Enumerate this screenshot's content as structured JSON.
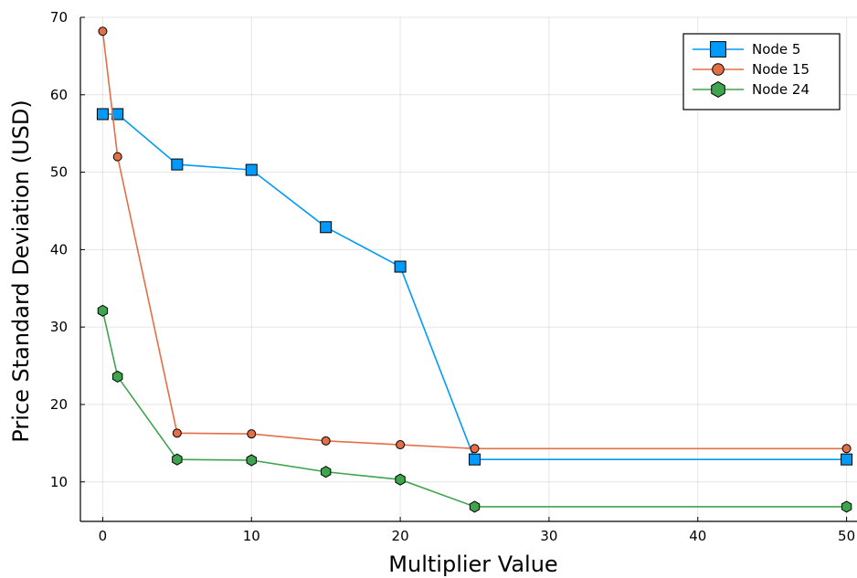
{
  "chart_data": {
    "type": "line",
    "title": "",
    "xlabel": "Multiplier Value",
    "ylabel": "Price Standard Deviation (USD)",
    "xlim": [
      -1.5,
      50.7
    ],
    "ylim": [
      4.9,
      70
    ],
    "xticks": [
      0,
      10,
      20,
      30,
      40,
      50
    ],
    "yticks": [
      10,
      20,
      30,
      40,
      50,
      60,
      70
    ],
    "grid": true,
    "legend_position": "top-right",
    "x": [
      0,
      1,
      5,
      10,
      15,
      20,
      25,
      50
    ],
    "series": [
      {
        "name": "Node 5",
        "color": "#009AFA",
        "marker": "square",
        "values": [
          57.5,
          57.5,
          51.0,
          50.3,
          42.9,
          37.8,
          12.9,
          12.9
        ]
      },
      {
        "name": "Node 15",
        "color": "#E36F47",
        "marker": "circle",
        "values": [
          68.2,
          52.0,
          16.3,
          16.2,
          15.3,
          14.8,
          14.3,
          14.3
        ]
      },
      {
        "name": "Node 24",
        "color": "#3EA44E",
        "marker": "hexagon",
        "values": [
          32.1,
          23.6,
          12.9,
          12.8,
          11.3,
          10.3,
          6.8,
          6.8
        ]
      }
    ]
  }
}
